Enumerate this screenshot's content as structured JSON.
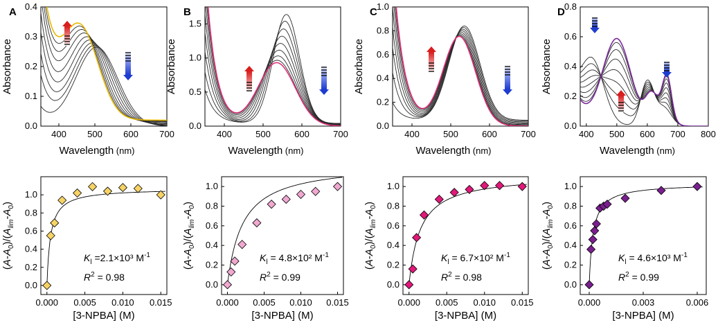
{
  "chart_data": [
    {
      "type": "line",
      "panel": "A",
      "xlabel": "Wavelength",
      "xunit": "(nm)",
      "ylabel": "Absorbance",
      "xlim": [
        350,
        700
      ],
      "ylim": [
        0,
        0.4
      ],
      "xticks": [
        "400",
        "500",
        "600",
        "700"
      ],
      "yticks": [
        "0.0",
        "0.1",
        "0.2",
        "0.3",
        "0.4"
      ],
      "series_count": 10,
      "highlight_color": "#e8b900",
      "peak_start_nm": 505,
      "peak_end_nm": 460,
      "trend": "red arrow up near 400 nm, blue arrow down near 590 nm"
    },
    {
      "type": "scatter",
      "panel": "A",
      "xlabel": "[3-NPBA] (M)",
      "ylabel": "(A-A0)/(Alim-A0)",
      "xlim": [
        -0.0008,
        0.0158
      ],
      "ylim": [
        -0.1,
        1.2
      ],
      "xticks": [
        "0.000",
        "0.005",
        "0.010",
        "0.015"
      ],
      "yticks": [
        "0.0",
        "0.2",
        "0.4",
        "0.6",
        "0.8",
        "1.0"
      ],
      "marker_color": "#f6d365",
      "x": [
        0,
        0.0005,
        0.001,
        0.002,
        0.004,
        0.006,
        0.008,
        0.01,
        0.012,
        0.015
      ],
      "y": [
        0.0,
        0.55,
        0.69,
        0.94,
        1.02,
        1.09,
        1.04,
        1.08,
        1.07,
        1.0
      ],
      "fit_K": 2100,
      "fit_max": 1.07,
      "K_text": "2.1×10³",
      "R2_text": "0.98"
    },
    {
      "type": "line",
      "panel": "B",
      "xlabel": "Wavelength",
      "xunit": "(nm)",
      "ylabel": "Absorbance",
      "xlim": [
        350,
        700
      ],
      "ylim": [
        0,
        1.75
      ],
      "xticks": [
        "400",
        "500",
        "600",
        "700"
      ],
      "yticks": [
        "0.0",
        "0.5",
        "1.0",
        "1.5"
      ],
      "series_count": 9,
      "highlight_color": "#e0307a",
      "peak_start_nm": 560,
      "peak_end_nm": 535,
      "trend": "red arrow up near 430 nm, blue arrow down near 650 nm"
    },
    {
      "type": "scatter",
      "panel": "B",
      "xlabel": "[3-NPBA] (M)",
      "ylabel": "(A-A0)/(Alim-A0)",
      "xlim": [
        -0.0008,
        0.0158
      ],
      "ylim": [
        -0.1,
        1.1
      ],
      "xticks": [
        "0.000",
        "0.005",
        "0.010",
        "0.015"
      ],
      "yticks": [
        "0.0",
        "0.2",
        "0.4",
        "0.6",
        "0.8",
        "1.0"
      ],
      "marker_color": "#f0a8d0",
      "x": [
        0,
        0.0005,
        0.001,
        0.002,
        0.004,
        0.006,
        0.008,
        0.01,
        0.012,
        0.015
      ],
      "y": [
        0.0,
        0.13,
        0.24,
        0.41,
        0.63,
        0.82,
        0.87,
        0.92,
        0.95,
        1.0
      ],
      "fit_K": 480,
      "fit_max": 1.24,
      "K_text": "4.8×10²",
      "R2_text": "0.99"
    },
    {
      "type": "line",
      "panel": "C",
      "xlabel": "Wavelength",
      "xunit": "(nm)",
      "ylabel": "Absorbance",
      "xlim": [
        350,
        700
      ],
      "ylim": [
        0,
        1.0
      ],
      "xticks": [
        "400",
        "500",
        "600",
        "700"
      ],
      "yticks": [
        "0.0",
        "0.2",
        "0.4",
        "0.6",
        "0.8",
        "1.0"
      ],
      "series_count": 9,
      "highlight_color": "#e0307a",
      "peak_start_nm": 535,
      "peak_end_nm": 522,
      "trend": "red arrow up near 425 nm, blue arrow down near 625 nm"
    },
    {
      "type": "scatter",
      "panel": "C",
      "xlabel": "[3-NPBA] (M)",
      "ylabel": "(A-A0)/(Alim-A0)",
      "xlim": [
        -0.0008,
        0.0158
      ],
      "ylim": [
        -0.1,
        1.1
      ],
      "xticks": [
        "0.000",
        "0.005",
        "0.010",
        "0.015"
      ],
      "yticks": [
        "0.0",
        "0.2",
        "0.4",
        "0.6",
        "0.8",
        "1.0"
      ],
      "marker_color": "#e2187a",
      "x": [
        0,
        0.0005,
        0.001,
        0.002,
        0.004,
        0.006,
        0.008,
        0.01,
        0.012,
        0.015
      ],
      "y": [
        0.0,
        0.16,
        0.48,
        0.71,
        0.87,
        0.94,
        0.97,
        1.01,
        1.01,
        1.0
      ],
      "fit_K": 670,
      "fit_max": 1.12,
      "K_text": "6.7×10²",
      "R2_text": "0.98"
    },
    {
      "type": "line",
      "panel": "D",
      "xlabel": "Wavelength",
      "xunit": "(nm)",
      "ylabel": "Absorbance",
      "xlim": [
        380,
        800
      ],
      "ylim": [
        0,
        0.8
      ],
      "xticks": [
        "400",
        "500",
        "600",
        "700",
        "800"
      ],
      "yticks": [
        "0.0",
        "0.2",
        "0.4",
        "0.6",
        "0.8"
      ],
      "series_count": 9,
      "highlight_color": "#7a2a9c",
      "peak_start_nm": 420,
      "peak_end_nm": 500,
      "trend": "blue arrows down near 430 nm and 660 nm, red arrow up near 505 nm"
    },
    {
      "type": "scatter",
      "panel": "D",
      "xlabel": "[3-NPBA] (M)",
      "ylabel": "(A-A0)/(Alim-A0)",
      "xlim": [
        -0.0005,
        0.0065
      ],
      "ylim": [
        -0.1,
        1.1
      ],
      "xticks": [
        "0.000",
        "0.003",
        "0.006"
      ],
      "yticks": [
        "0.0",
        "0.2",
        "0.4",
        "0.6",
        "0.8",
        "1.0"
      ],
      "marker_color": "#7a1f8e",
      "x": [
        0,
        0.0001,
        0.0002,
        0.0003,
        0.0004,
        0.0006,
        0.0008,
        0.001,
        0.002,
        0.004,
        0.006
      ],
      "y": [
        0.0,
        0.36,
        0.46,
        0.55,
        0.62,
        0.78,
        0.8,
        0.82,
        0.88,
        0.96,
        1.0
      ],
      "fit_K": 4600,
      "fit_max": 1.03,
      "K_text": "4.6×10³",
      "R2_text": "0.99"
    }
  ],
  "labels": {
    "panel_letters": [
      "A",
      "B",
      "C",
      "D"
    ],
    "k_prefix": "K",
    "k_sub": "l",
    "k_unit": "M",
    "k_unit_exp": "-1",
    "k_eq_A": " =",
    "k_eq": " = ",
    "r_prefix": "R",
    "r_exp": "2",
    "r_eq": " = "
  },
  "colors": {
    "spectra": "#2b2b2b",
    "arrow_up": "#d81e1e",
    "arrow_down": "#1e3ccf"
  }
}
